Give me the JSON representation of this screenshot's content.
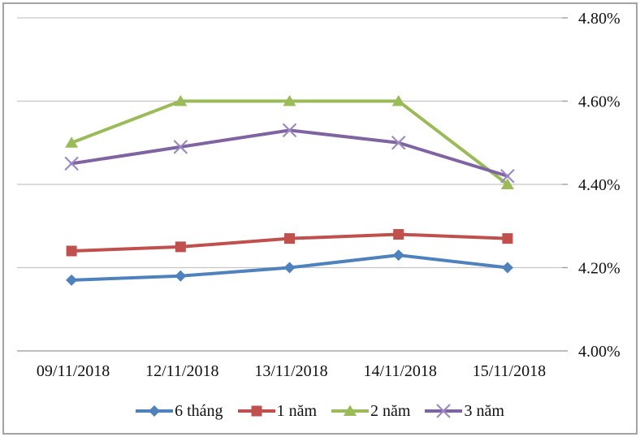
{
  "figure": {
    "background": "#ffffff",
    "border_color": "#a3a3a3",
    "gridline_color": "#c6c6c6",
    "axisline_color": "#999999",
    "text_color": "#111111"
  },
  "chart_data": {
    "type": "line",
    "title": "",
    "xlabel": "",
    "ylabel": "",
    "categories": [
      "09/11/2018",
      "12/11/2018",
      "13/11/2018",
      "14/11/2018",
      "15/11/2018"
    ],
    "series": [
      {
        "name": "6 tháng",
        "color": "#4F81BD",
        "marker": "diamond",
        "marker_color": "#4F81BD",
        "values": [
          4.17,
          4.18,
          4.2,
          4.23,
          4.2
        ]
      },
      {
        "name": "1 năm",
        "color": "#C0504D",
        "marker": "square",
        "marker_color": "#C0504D",
        "values": [
          4.24,
          4.25,
          4.27,
          4.28,
          4.27
        ]
      },
      {
        "name": "2 năm",
        "color": "#9BBB59",
        "marker": "triangle",
        "marker_color": "#9BBB59",
        "values": [
          4.5,
          4.6,
          4.6,
          4.6,
          4.4
        ]
      },
      {
        "name": "3 năm",
        "color": "#8064A2",
        "marker": "x",
        "marker_color": "#9b8ac1",
        "values": [
          4.45,
          4.49,
          4.53,
          4.5,
          4.42
        ]
      }
    ],
    "ylim": [
      4.0,
      4.8
    ],
    "yticks": [
      "4.00%",
      "4.20%",
      "4.40%",
      "4.60%",
      "4.80%"
    ],
    "ytick_values": [
      4.0,
      4.2,
      4.4,
      4.6,
      4.8
    ],
    "grid": true,
    "legend_position": "bottom",
    "y_axis_side": "right"
  }
}
